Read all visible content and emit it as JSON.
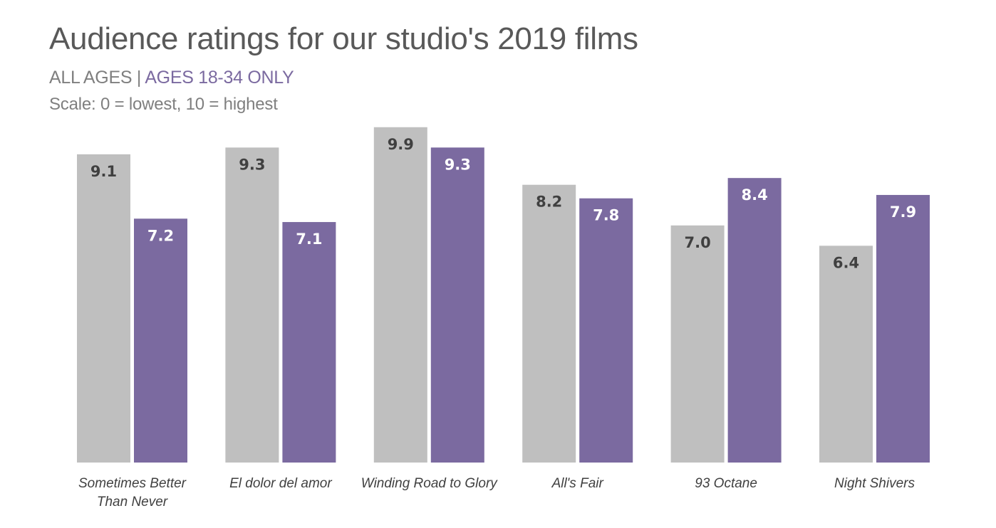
{
  "header": {
    "title": "Audience ratings for our studio's 2019 films",
    "subtitle_all": "ALL AGES",
    "subtitle_sep": " | ",
    "subtitle_young": "AGES 18-34 ONLY",
    "note": "Scale: 0 = lowest, 10 = highest"
  },
  "colors": {
    "all_ages": "#bfbfbf",
    "ages_18_34": "#7b6aa0",
    "label_dark": "#404040",
    "label_light": "#ffffff"
  },
  "chart_data": {
    "type": "bar",
    "title": "Audience ratings for our studio's 2019 films",
    "subtitle": "ALL AGES | AGES 18-34 ONLY",
    "note": "Scale: 0 = lowest, 10 = highest",
    "categories": [
      [
        "Sometimes Better",
        "Than Never"
      ],
      [
        "El dolor del amor"
      ],
      [
        "Winding Road to Glory"
      ],
      [
        "All's Fair"
      ],
      [
        "93 Octane"
      ],
      [
        "Night Shivers"
      ]
    ],
    "series": [
      {
        "name": "ALL AGES",
        "values": [
          9.1,
          9.3,
          9.9,
          8.2,
          7.0,
          6.4
        ],
        "labels": [
          "9.1",
          "9.3",
          "9.9",
          "8.2",
          "7.0",
          "6.4"
        ]
      },
      {
        "name": "AGES 18-34 ONLY",
        "values": [
          7.2,
          7.1,
          9.3,
          7.8,
          8.4,
          7.9
        ],
        "labels": [
          "7.2",
          "7.1",
          "9.3",
          "7.8",
          "8.4",
          "7.9"
        ]
      }
    ],
    "ylim": [
      0,
      10
    ],
    "grid": false,
    "xlabel": "",
    "ylabel": ""
  }
}
